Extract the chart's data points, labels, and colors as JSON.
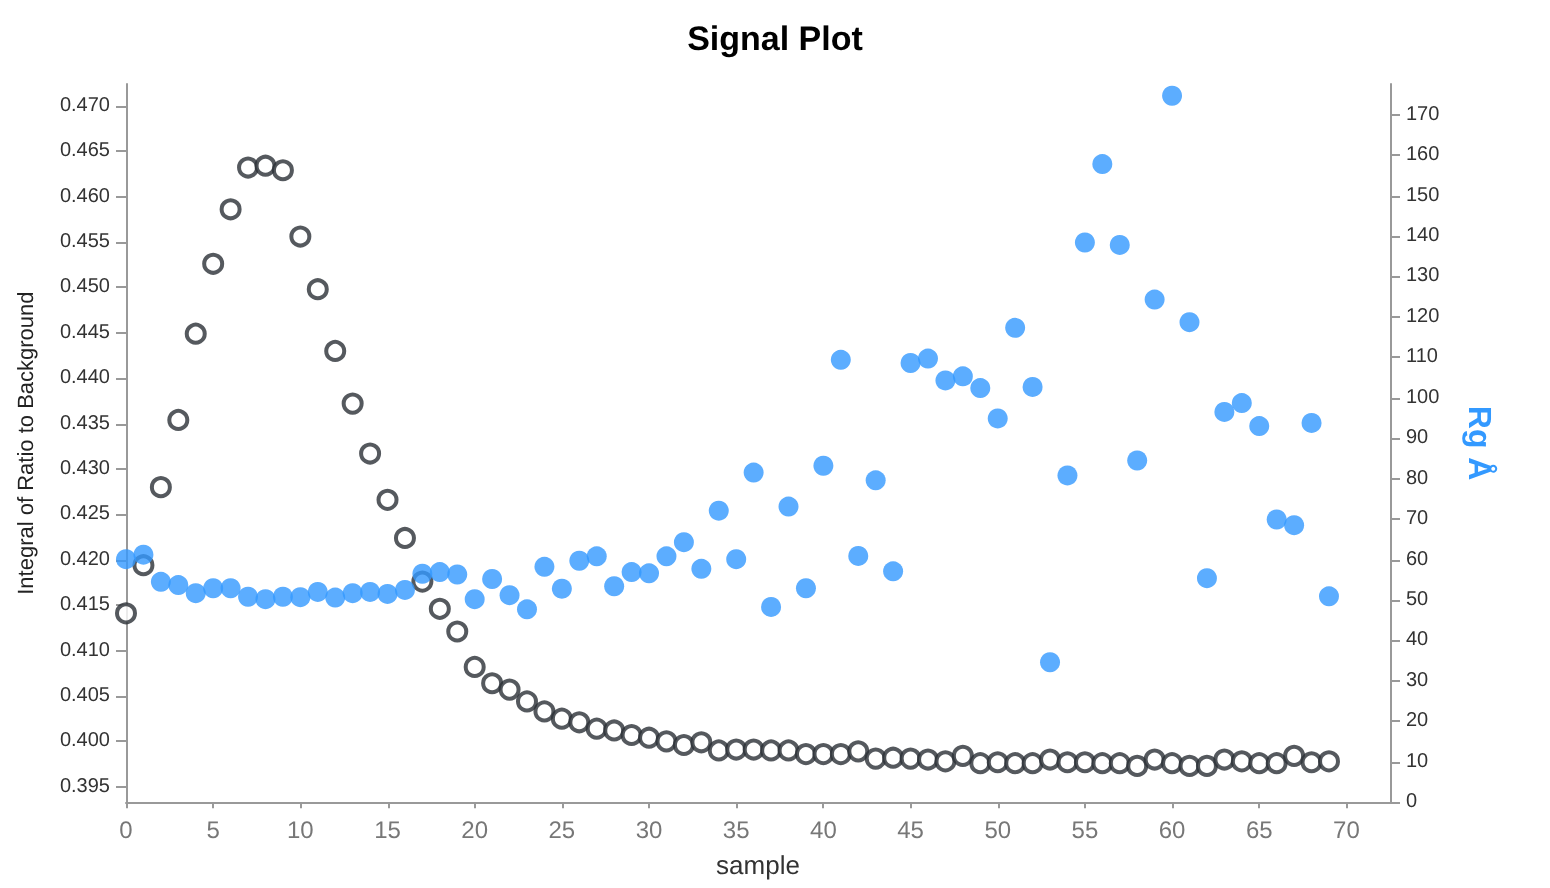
{
  "chart_data": {
    "type": "scatter",
    "title": "Signal Plot",
    "xlabel": "sample",
    "ylabel": "Integral of Ratio to Background",
    "y2label": "Rg Å",
    "x": [
      0,
      1,
      2,
      3,
      4,
      5,
      6,
      7,
      8,
      9,
      10,
      11,
      12,
      13,
      14,
      15,
      16,
      17,
      18,
      19,
      20,
      21,
      22,
      23,
      24,
      25,
      26,
      27,
      28,
      29,
      30,
      31,
      32,
      33,
      34,
      35,
      36,
      37,
      38,
      39,
      40,
      41,
      42,
      43,
      44,
      45,
      46,
      47,
      48,
      49,
      50,
      51,
      52,
      53,
      54,
      55,
      56,
      57,
      58,
      59,
      60,
      61,
      62,
      63,
      64,
      65,
      66,
      67,
      68,
      69
    ],
    "series": [
      {
        "color": "#2b2f36",
        "values": [
          0.4141,
          0.4194,
          0.428,
          0.4354,
          0.4449,
          0.4526,
          0.4586,
          0.4632,
          0.4634,
          0.4629,
          0.4556,
          0.4498,
          0.443,
          0.4372,
          0.4317,
          0.4266,
          0.4224,
          0.4176,
          0.4146,
          0.4121,
          0.4082,
          0.4064,
          0.4057,
          0.4044,
          0.4033,
          0.4025,
          0.4021,
          0.4014,
          0.4012,
          0.4007,
          0.4004,
          0.4,
          0.3996,
          0.3999,
          0.399,
          0.3991,
          0.3991,
          0.399,
          0.399,
          0.3986,
          0.3986,
          0.3986,
          0.3989,
          0.3981,
          0.3982,
          0.3981,
          0.398,
          0.3978,
          0.3984,
          0.3976,
          0.3977,
          0.3976,
          0.3976,
          0.398,
          0.3977,
          0.3977,
          0.3976,
          0.3976,
          0.3973,
          0.398,
          0.3976,
          0.3973,
          0.3973,
          0.398,
          0.3978,
          0.3976,
          0.3976,
          0.3984,
          0.3977,
          0.3978
        ]
      },
      {
        "color": "#3399ff",
        "axis": "y2",
        "values": [
          60.1,
          61.2,
          54.5,
          53.7,
          51.7,
          52.9,
          52.9,
          50.8,
          50.2,
          50.8,
          50.7,
          52.0,
          50.6,
          51.7,
          52.0,
          51.5,
          52.5,
          56.5,
          56.9,
          56.3,
          50.2,
          55.2,
          51.2,
          47.7,
          58.2,
          52.8,
          59.7,
          60.8,
          53.4,
          56.9,
          56.6,
          60.8,
          64.3,
          57.7,
          72.1,
          60.1,
          81.5,
          48.3,
          73.1,
          52.9,
          83.2,
          109.4,
          60.9,
          79.6,
          57.1,
          108.6,
          109.7,
          104.3,
          105.3,
          102.4,
          94.9,
          117.3,
          102.7,
          34.6,
          80.8,
          138.4,
          157.8,
          137.8,
          84.5,
          124.3,
          174.7,
          118.7,
          55.4,
          96.5,
          98.7,
          93.0,
          69.9,
          68.5,
          93.8,
          50.9
        ]
      }
    ],
    "xlim": [
      0,
      72.5
    ],
    "xticks": [
      0,
      5,
      10,
      15,
      20,
      25,
      30,
      35,
      40,
      45,
      50,
      55,
      60,
      65,
      70
    ],
    "ylim": [
      0.3933,
      0.4724
    ],
    "yticks": [
      0.395,
      {
        "value": 0.4,
        "label": "0.400"
      },
      0.405,
      {
        "value": 0.41,
        "label": "0.410"
      },
      0.415,
      {
        "value": 0.42,
        "label": "0.420"
      },
      0.425,
      {
        "value": 0.43,
        "label": "0.430"
      },
      0.435,
      {
        "value": 0.44,
        "label": "0.440"
      },
      0.445,
      {
        "value": 0.45,
        "label": "0.450"
      },
      0.455,
      {
        "value": 0.46,
        "label": "0.460"
      },
      0.465,
      {
        "value": 0.47,
        "label": "0.470"
      }
    ],
    "y2lim": [
      0,
      177.6
    ],
    "y2ticks": [
      0,
      10,
      20,
      30,
      40,
      50,
      60,
      70,
      80,
      90,
      100,
      110,
      120,
      130,
      140,
      150,
      160,
      170
    ],
    "marker": "circle",
    "grid": false
  }
}
